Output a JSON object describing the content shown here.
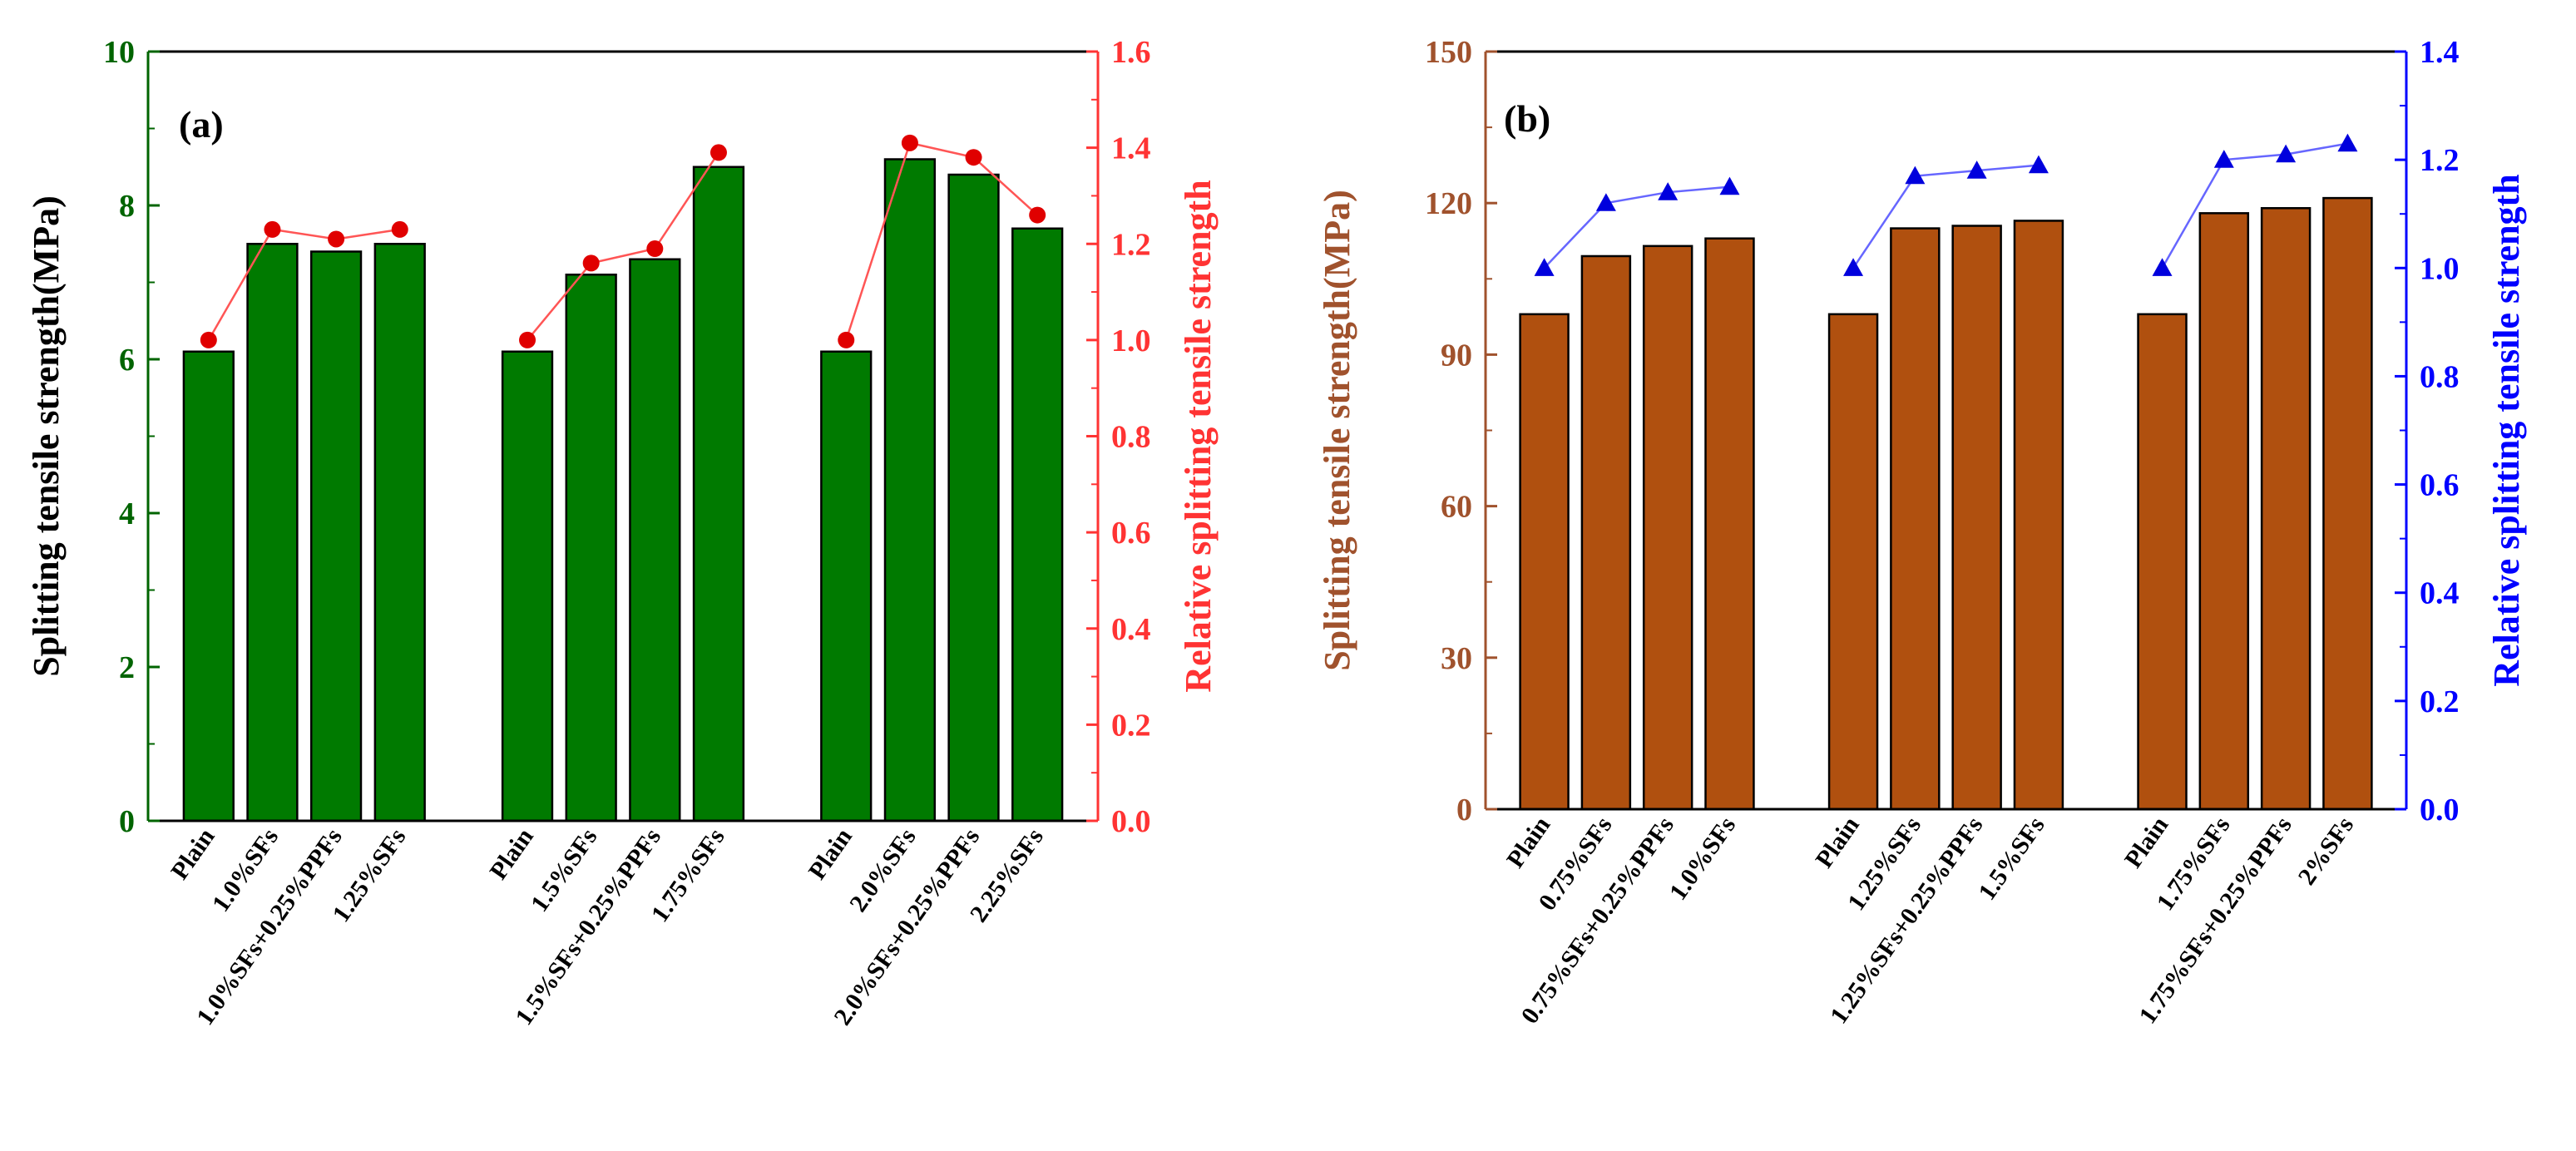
{
  "chart_data": [
    {
      "type": "bar",
      "panel_label": "(a)",
      "colors": {
        "bar": "#007a00",
        "left_axis": "#006400",
        "right_axis": "#ff3333",
        "line": "#ff5555",
        "marker": "#e00000"
      },
      "ylabel": "Splitting tensile strength(MPa)",
      "ylabel_right": "Relative splitting tensile strength",
      "ylim": [
        0,
        10
      ],
      "ylim_right": [
        0,
        1.6
      ],
      "yticks": [
        "0",
        "2",
        "4",
        "6",
        "8",
        "10"
      ],
      "yticks_right": [
        "0.0",
        "0.2",
        "0.4",
        "0.6",
        "0.8",
        "1.0",
        "1.2",
        "1.4",
        "1.6"
      ],
      "groups": [
        {
          "categories": [
            "Plain",
            "1.0%SFs",
            "1.0%SFs+0.25%PPFs",
            "1.25%SFs"
          ],
          "values": [
            6.1,
            7.5,
            7.4,
            7.5
          ],
          "relative": [
            1.0,
            1.23,
            1.21,
            1.23
          ]
        },
        {
          "categories": [
            "Plain",
            "1.5%SFs",
            "1.5%SFs+0.25%PPFs",
            "1.75%SFs"
          ],
          "values": [
            6.1,
            7.1,
            7.3,
            8.5
          ],
          "relative": [
            1.0,
            1.16,
            1.19,
            1.39
          ]
        },
        {
          "categories": [
            "Plain",
            "2.0%SFs",
            "2.0%SFs+0.25%PPFs",
            "2.25%SFs"
          ],
          "values": [
            6.1,
            8.6,
            8.4,
            7.7
          ],
          "relative": [
            1.0,
            1.41,
            1.38,
            1.26
          ]
        }
      ]
    },
    {
      "type": "bar",
      "panel_label": "(b)",
      "colors": {
        "bar": "#b0500f",
        "left_axis": "#a0522d",
        "right_axis": "#0000ff",
        "line": "#6666ff",
        "marker": "#0000dd"
      },
      "ylabel": "Splitting tensile strength(MPa)",
      "ylabel_right": "Relative splitting tensile strength",
      "ylim": [
        0,
        150
      ],
      "ylim_right": [
        0,
        1.4
      ],
      "yticks": [
        "0",
        "30",
        "60",
        "90",
        "120",
        "150"
      ],
      "yticks_right": [
        "0.0",
        "0.2",
        "0.4",
        "0.6",
        "0.8",
        "1.0",
        "1.2",
        "1.4"
      ],
      "groups": [
        {
          "categories": [
            "Plain",
            "0.75%SFs",
            "0.75%SFs+0.25%PPFs",
            "1.0%SFs"
          ],
          "values": [
            98,
            109.5,
            111.5,
            113
          ],
          "relative": [
            1.0,
            1.12,
            1.14,
            1.15
          ]
        },
        {
          "categories": [
            "Plain",
            "1.25%SFs",
            "1.25%SFs+0.25%PPFs",
            "1.5%SFs"
          ],
          "values": [
            98,
            115,
            115.5,
            116.5
          ],
          "relative": [
            1.0,
            1.17,
            1.18,
            1.19
          ]
        },
        {
          "categories": [
            "Plain",
            "1.75%SFs",
            "1.75%SFs+0.25%PPFs",
            "2%SFs"
          ],
          "values": [
            98,
            118,
            119,
            121
          ],
          "relative": [
            1.0,
            1.2,
            1.21,
            1.23
          ]
        }
      ]
    }
  ]
}
